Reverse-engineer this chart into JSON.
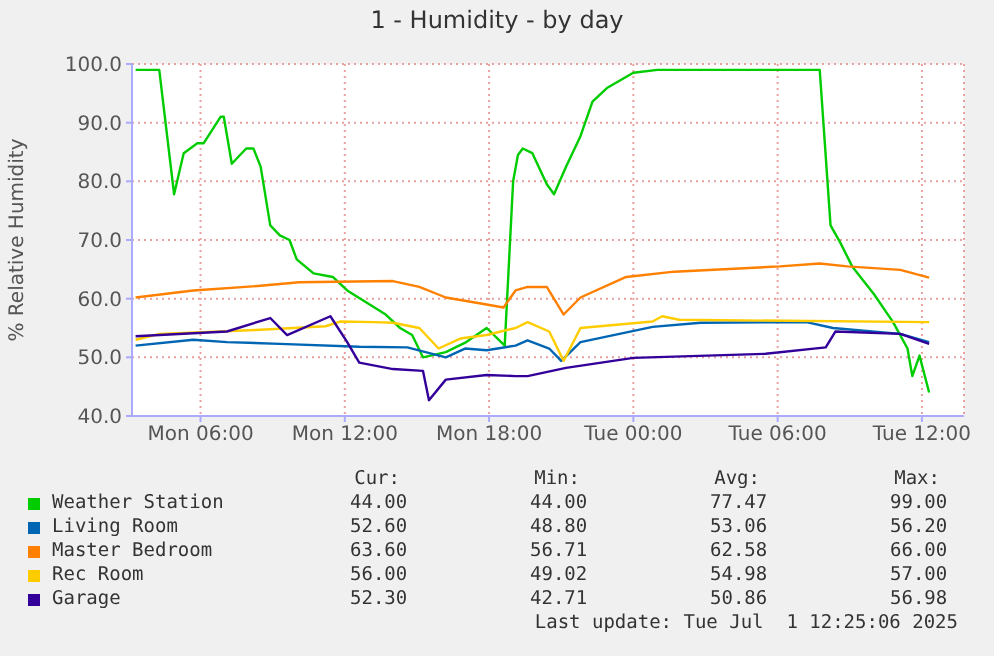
{
  "chart_data": {
    "type": "line",
    "title": "1 - Humidity - by day",
    "ylabel": "% Relative Humidity",
    "xlim": [
      "2025-06-30T03:09",
      "2025-07-01T13:45"
    ],
    "xticks": [
      {
        "value": "2025-06-30T06:00",
        "label": "Mon 06:00"
      },
      {
        "value": "2025-06-30T12:00",
        "label": "Mon 12:00"
      },
      {
        "value": "2025-06-30T18:00",
        "label": "Mon 18:00"
      },
      {
        "value": "2025-07-01T00:00",
        "label": "Tue 00:00"
      },
      {
        "value": "2025-07-01T06:00",
        "label": "Tue 06:00"
      },
      {
        "value": "2025-07-01T12:00",
        "label": "Tue 12:00"
      }
    ],
    "ylim": [
      40,
      100
    ],
    "yticks": [
      {
        "value": 40,
        "label": "40.0"
      },
      {
        "value": 50,
        "label": "50.0"
      },
      {
        "value": 60,
        "label": "60.0"
      },
      {
        "value": 70,
        "label": "70.0"
      },
      {
        "value": 80,
        "label": "80.0"
      },
      {
        "value": 90,
        "label": "90.0"
      },
      {
        "value": 100,
        "label": "100.0"
      }
    ],
    "grid": true,
    "legend": "bottom",
    "marker": "none",
    "line_style": "solid",
    "series": [
      {
        "name": "Weather Station",
        "color": "#00cc00",
        "x": [
          "2025-06-30T03:18",
          "2025-06-30T04:17",
          "2025-06-30T04:54",
          "2025-06-30T05:18",
          "2025-06-30T05:52",
          "2025-06-30T06:08",
          "2025-06-30T06:50",
          "2025-06-30T06:58",
          "2025-06-30T07:18",
          "2025-06-30T07:54",
          "2025-06-30T08:12",
          "2025-06-30T08:30",
          "2025-06-30T08:54",
          "2025-06-30T09:18",
          "2025-06-30T09:42",
          "2025-06-30T10:00",
          "2025-06-30T10:42",
          "2025-06-30T11:30",
          "2025-06-30T12:06",
          "2025-06-30T12:48",
          "2025-06-30T13:42",
          "2025-06-30T14:18",
          "2025-06-30T14:48",
          "2025-06-30T15:15",
          "2025-06-30T16:12",
          "2025-06-30T17:03",
          "2025-06-30T17:54",
          "2025-06-30T18:39",
          "2025-06-30T19:00",
          "2025-06-30T19:12",
          "2025-06-30T19:24",
          "2025-06-30T19:48",
          "2025-06-30T20:24",
          "2025-06-30T20:42",
          "2025-06-30T21:12",
          "2025-06-30T21:48",
          "2025-06-30T22:18",
          "2025-06-30T22:54",
          "2025-07-01T00:00",
          "2025-07-01T01:00",
          "2025-07-01T07:45",
          "2025-07-01T08:12",
          "2025-07-01T08:36",
          "2025-07-01T09:06",
          "2025-07-01T10:00",
          "2025-07-01T10:48",
          "2025-07-01T11:24",
          "2025-07-01T11:36",
          "2025-07-01T11:54",
          "2025-07-01T12:18"
        ],
        "values": [
          99,
          99,
          77.8,
          84.8,
          86.5,
          86.5,
          91,
          91,
          83,
          85.6,
          85.6,
          82.5,
          72.5,
          70.8,
          70,
          66.7,
          64.3,
          63.7,
          61.4,
          59.6,
          57.3,
          55,
          53.8,
          50,
          50.9,
          52.6,
          55,
          52,
          80,
          84.5,
          85.6,
          84.8,
          79.5,
          77.8,
          82.5,
          87.7,
          93.6,
          95.9,
          98.5,
          99,
          99,
          72.5,
          69.6,
          65.5,
          60.8,
          56,
          51.5,
          46.8,
          50.3,
          44
        ]
      },
      {
        "name": "Living Room",
        "color": "#0066b3",
        "x": [
          "2025-06-30T03:18",
          "2025-06-30T05:42",
          "2025-06-30T07:06",
          "2025-06-30T09:18",
          "2025-06-30T12:36",
          "2025-06-30T14:36",
          "2025-06-30T16:12",
          "2025-06-30T17:00",
          "2025-06-30T17:54",
          "2025-06-30T19:06",
          "2025-06-30T19:36",
          "2025-06-30T20:30",
          "2025-06-30T21:00",
          "2025-06-30T21:48",
          "2025-07-01T00:48",
          "2025-07-01T02:48",
          "2025-07-01T07:12",
          "2025-07-01T08:18",
          "2025-07-01T11:06",
          "2025-07-01T12:18"
        ],
        "values": [
          52,
          53,
          52.6,
          52.3,
          51.8,
          51.7,
          50,
          51.5,
          51.2,
          52,
          52.9,
          51.5,
          49.4,
          52.6,
          55.2,
          55.9,
          56,
          55,
          54,
          52.6
        ]
      },
      {
        "name": "Master Bedroom",
        "color": "#ff8000",
        "x": [
          "2025-06-30T03:18",
          "2025-06-30T05:42",
          "2025-06-30T08:30",
          "2025-06-30T10:06",
          "2025-06-30T14:00",
          "2025-06-30T15:06",
          "2025-06-30T16:12",
          "2025-06-30T17:54",
          "2025-06-30T18:36",
          "2025-06-30T19:06",
          "2025-06-30T19:36",
          "2025-06-30T20:24",
          "2025-06-30T21:06",
          "2025-06-30T21:48",
          "2025-06-30T23:42",
          "2025-07-01T01:42",
          "2025-07-01T06:06",
          "2025-07-01T07:45",
          "2025-07-01T08:54",
          "2025-07-01T11:06",
          "2025-07-01T12:18"
        ],
        "values": [
          60.2,
          61.4,
          62.2,
          62.8,
          63,
          62,
          60.2,
          59,
          58.5,
          61.4,
          62,
          62,
          57.3,
          60.2,
          63.7,
          64.6,
          65.5,
          66,
          65.5,
          64.9,
          63.6
        ]
      },
      {
        "name": "Rec Room",
        "color": "#ffcc00",
        "x": [
          "2025-06-30T03:18",
          "2025-06-30T04:18",
          "2025-06-30T08:30",
          "2025-06-30T11:12",
          "2025-06-30T11:48",
          "2025-06-30T13:12",
          "2025-06-30T14:00",
          "2025-06-30T15:06",
          "2025-06-30T15:54",
          "2025-06-30T16:48",
          "2025-06-30T17:54",
          "2025-06-30T19:06",
          "2025-06-30T19:36",
          "2025-06-30T20:30",
          "2025-06-30T21:06",
          "2025-06-30T21:48",
          "2025-07-01T00:48",
          "2025-07-01T01:12",
          "2025-07-01T01:54",
          "2025-07-01T12:18"
        ],
        "values": [
          53,
          54,
          54.7,
          55.3,
          56.1,
          56,
          55.9,
          55,
          51.5,
          53.2,
          53.8,
          55,
          56,
          54.4,
          49.4,
          55,
          56.1,
          57,
          56.4,
          56
        ]
      },
      {
        "name": "Garage",
        "color": "#330099",
        "x": [
          "2025-06-30T03:18",
          "2025-06-30T07:06",
          "2025-06-30T08:54",
          "2025-06-30T09:36",
          "2025-06-30T11:24",
          "2025-06-30T12:06",
          "2025-06-30T12:36",
          "2025-06-30T14:00",
          "2025-06-30T15:15",
          "2025-06-30T15:30",
          "2025-06-30T16:12",
          "2025-06-30T17:54",
          "2025-06-30T19:06",
          "2025-06-30T19:36",
          "2025-06-30T21:12",
          "2025-07-01T00:00",
          "2025-07-01T05:30",
          "2025-07-01T08:00",
          "2025-07-01T08:24",
          "2025-07-01T11:06",
          "2025-07-01T12:18"
        ],
        "values": [
          53.6,
          54.4,
          56.7,
          53.8,
          57,
          52.6,
          49.1,
          48,
          47.7,
          42.7,
          46.2,
          47,
          46.8,
          46.8,
          48.2,
          49.9,
          50.6,
          51.7,
          54.4,
          54,
          52.3
        ]
      }
    ],
    "annotations": [
      "Cur:",
      "Min:",
      "Avg:",
      "Max:",
      "44.00",
      "44.00",
      "77.47",
      "99.00",
      "52.60",
      "48.80",
      "53.06",
      "56.20",
      "63.60",
      "56.71",
      "62.58",
      "66.00",
      "56.00",
      "49.02",
      "54.98",
      "57.00",
      "52.30",
      "42.71",
      "50.86",
      "56.98",
      "Last update: Tue Jul  1 12:25:06 2025"
    ]
  }
}
